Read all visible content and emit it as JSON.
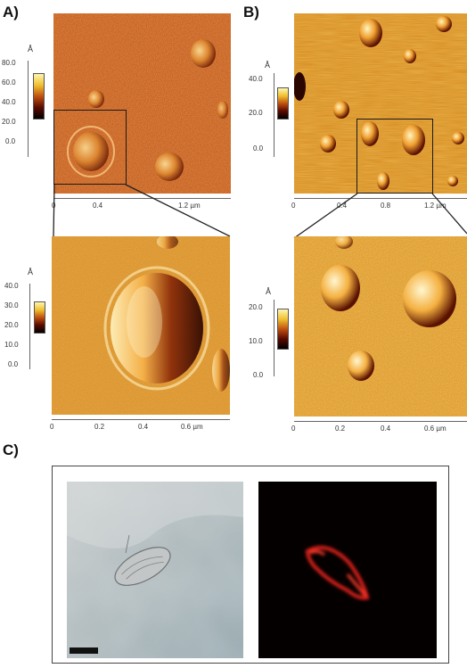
{
  "panels": {
    "A": {
      "label": "A)",
      "top": {
        "unit": "Å",
        "z_ticks": [
          "80.0",
          "60.0",
          "40.0",
          "20.0",
          "0.0"
        ],
        "x_ticks": [
          "0",
          "0.4",
          "1.2 µm"
        ]
      },
      "bottom": {
        "unit": "Å",
        "z_ticks": [
          "40.0",
          "30.0",
          "20.0",
          "10.0",
          "0.0"
        ],
        "x_ticks": [
          "0",
          "0.2",
          "0.4",
          "0.6 µm"
        ]
      }
    },
    "B": {
      "label": "B)",
      "top": {
        "unit": "Å",
        "z_ticks": [
          "40.0",
          "20.0",
          "0.0"
        ],
        "x_ticks": [
          "0",
          "0.4",
          "0.8",
          "1.2 µm"
        ]
      },
      "bottom": {
        "unit": "Å",
        "z_ticks": [
          "20.0",
          "10.0",
          "0.0"
        ],
        "x_ticks": [
          "0",
          "0.2",
          "0.4",
          "0.6 µm"
        ]
      }
    },
    "C": {
      "label": "C)"
    }
  },
  "colors": {
    "afm_a": "#c0501a",
    "afm_b": "#d3861c",
    "fluorescence": "#e0201c",
    "brightfield": "#a9b4b8"
  }
}
